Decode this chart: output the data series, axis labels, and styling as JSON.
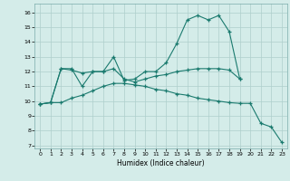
{
  "xlabel": "Humidex (Indice chaleur)",
  "bg_color": "#d4ece9",
  "grid_color": "#aecfcc",
  "line_color": "#1a7a6e",
  "x_ticks": [
    0,
    1,
    2,
    3,
    4,
    5,
    6,
    7,
    8,
    9,
    10,
    11,
    12,
    13,
    14,
    15,
    16,
    17,
    18,
    19,
    20,
    21,
    22,
    23
  ],
  "y_ticks": [
    7,
    8,
    9,
    10,
    11,
    12,
    13,
    14,
    15,
    16
  ],
  "ylim": [
    6.8,
    16.6
  ],
  "xlim": [
    -0.5,
    23.5
  ],
  "series": [
    {
      "x": [
        0,
        1,
        2,
        3,
        4,
        5,
        6,
        7,
        8,
        9,
        10,
        11,
        12,
        13,
        14,
        15,
        16,
        17,
        18,
        19
      ],
      "y": [
        9.8,
        9.9,
        12.2,
        12.2,
        11.0,
        12.0,
        12.0,
        13.0,
        11.4,
        11.5,
        12.0,
        12.0,
        12.6,
        13.9,
        15.5,
        15.8,
        15.5,
        15.8,
        14.7,
        11.5
      ]
    },
    {
      "x": [
        0,
        1,
        2,
        3,
        4,
        5,
        6,
        7,
        8,
        9,
        10,
        11,
        12,
        13,
        14,
        15,
        16,
        17,
        18,
        19
      ],
      "y": [
        9.8,
        9.9,
        12.2,
        12.1,
        11.9,
        12.0,
        12.0,
        12.2,
        11.5,
        11.3,
        11.5,
        11.7,
        11.8,
        12.0,
        12.1,
        12.2,
        12.2,
        12.2,
        12.1,
        11.5
      ]
    },
    {
      "x": [
        0,
        1,
        2,
        3,
        4,
        5,
        6,
        7,
        8,
        9,
        10,
        11,
        12,
        13,
        14,
        15,
        16,
        17,
        18,
        19,
        20,
        21,
        22,
        23
      ],
      "y": [
        9.8,
        9.9,
        9.9,
        10.2,
        10.4,
        10.7,
        11.0,
        11.2,
        11.2,
        11.1,
        11.0,
        10.8,
        10.7,
        10.5,
        10.4,
        10.2,
        10.1,
        10.0,
        9.9,
        9.85,
        9.85,
        8.5,
        8.25,
        7.2
      ]
    }
  ]
}
